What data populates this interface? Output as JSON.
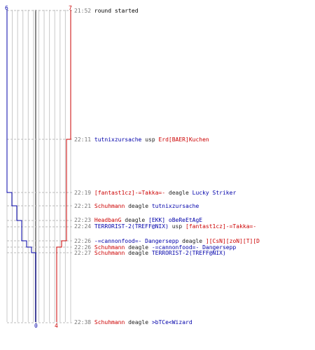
{
  "score": {
    "blue_start": "6",
    "red_start": "7",
    "blue_end": "0",
    "red_end": "4"
  },
  "colors": {
    "blue": "#0000aa",
    "red": "#cc0000",
    "grid": "#c8c8c8",
    "center": "#888888",
    "dash": "#bbbbbb",
    "time": "#777777",
    "verb": "#222222"
  },
  "events": [
    {
      "time": "21:52",
      "parts": [
        {
          "t": "round started",
          "c": "time"
        }
      ]
    },
    {
      "time": "22:11",
      "parts": [
        {
          "t": "tutnixzursache",
          "c": "blue"
        },
        {
          "t": "usp",
          "c": "dark"
        },
        {
          "t": "Erd[BAER]Kuchen",
          "c": "red"
        }
      ]
    },
    {
      "time": "22:19",
      "parts": [
        {
          "t": "[fantast1cz]-=Takka=-",
          "c": "red"
        },
        {
          "t": "deagle",
          "c": "dark"
        },
        {
          "t": "Lucky Striker",
          "c": "blue"
        }
      ]
    },
    {
      "time": "22:21",
      "parts": [
        {
          "t": "Schuhmann",
          "c": "red"
        },
        {
          "t": "deagle",
          "c": "dark"
        },
        {
          "t": "tutnixzursache",
          "c": "blue"
        }
      ]
    },
    {
      "time": "22:23",
      "parts": [
        {
          "t": "HeadbanG",
          "c": "red"
        },
        {
          "t": "deagle",
          "c": "dark"
        },
        {
          "t": "[EKK] oBeReEtAgE",
          "c": "blue"
        }
      ]
    },
    {
      "time": "22:24",
      "parts": [
        {
          "t": "TERRORIST-2(TREFF@NIX)",
          "c": "blue"
        },
        {
          "t": "usp",
          "c": "dark"
        },
        {
          "t": "[fantast1cz]-=Takka=-",
          "c": "red"
        }
      ]
    },
    {
      "time": "22:26",
      "parts": [
        {
          "t": "-=cannonfood=- Dangersepp",
          "c": "blue"
        },
        {
          "t": "deagle",
          "c": "dark"
        },
        {
          "t": "][CsN][zoN][T][D",
          "c": "red"
        }
      ]
    },
    {
      "time": "22:26",
      "parts": [
        {
          "t": "Schuhmann",
          "c": "red"
        },
        {
          "t": "deagle",
          "c": "dark"
        },
        {
          "t": "-=cannonfood=- Dangersepp",
          "c": "blue"
        }
      ]
    },
    {
      "time": "22:27",
      "parts": [
        {
          "t": "Schuhmann",
          "c": "red"
        },
        {
          "t": "deagle",
          "c": "dark"
        },
        {
          "t": "TERRORIST-2(TREFF@NIX)",
          "c": "blue"
        }
      ]
    },
    {
      "time": "22:38",
      "parts": [
        {
          "t": "Schuhmann",
          "c": "red"
        },
        {
          "t": "deagle",
          "c": "dark"
        },
        {
          "t": ">bTCe<Wizard",
          "c": "blue"
        }
      ]
    }
  ]
}
